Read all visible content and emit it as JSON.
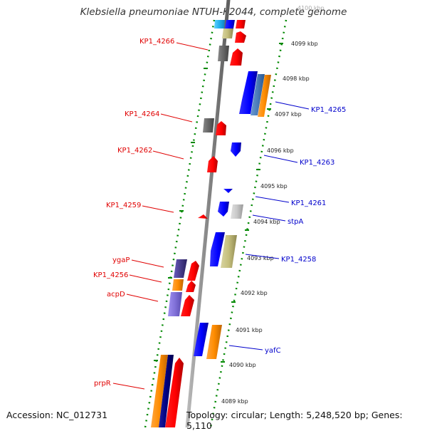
{
  "title": "Klebsiella pneumoniae NTUH-K2044, complete genome",
  "footer": {
    "accession": "Accession: NC_012731",
    "topology": "Topology: circular; Length: 5,248,520 bp; Genes: 5,110"
  },
  "colors": {
    "forward": "#ff0000",
    "reverse": "#0000ff",
    "ticks": "#008800",
    "backbone": "#888888",
    "label_left": "#e00000",
    "label_right": "#0000cc"
  },
  "scale": {
    "unit": "kbp",
    "marks": [
      "4089 kbp",
      "4090 kbp",
      "4091 kbp",
      "4092 kbp",
      "4093 kbp",
      "4094 kbp",
      "4095 kbp",
      "4096 kbp",
      "4097 kbp",
      "4098 kbp",
      "4099 kbp",
      "4100 kbp"
    ]
  },
  "labels_left": [
    "KP1_4266",
    "KP1_4264",
    "KP1_4262",
    "KP1_4259",
    "ygaP",
    "KP1_4256",
    "acpD",
    "prpR"
  ],
  "labels_right": [
    "KP1_4265",
    "KP1_4263",
    "KP1_4261",
    "stpA",
    "KP1_4258",
    "yafC"
  ]
}
